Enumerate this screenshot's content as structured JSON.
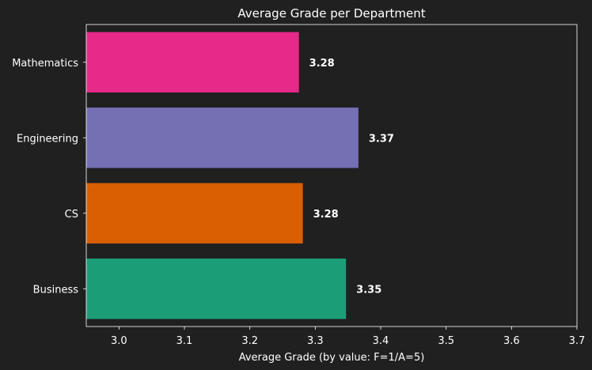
{
  "chart_data": {
    "type": "bar",
    "orientation": "horizontal",
    "title": "Average Grade per Department",
    "xlabel": "Average Grade (by value: F=1/A=5)",
    "ylabel": "",
    "categories": [
      "Mathematics",
      "Engineering",
      "CS",
      "Business"
    ],
    "values": [
      3.275,
      3.366,
      3.281,
      3.347
    ],
    "value_labels": [
      "3.28",
      "3.37",
      "3.28",
      "3.35"
    ],
    "colors": [
      "#e7298a",
      "#7570b3",
      "#d95f02",
      "#1b9e77"
    ],
    "xlim": [
      2.95,
      3.7
    ],
    "xticks": [
      "3.0",
      "3.1",
      "3.2",
      "3.3",
      "3.4",
      "3.5",
      "3.6",
      "3.7"
    ],
    "grid": false,
    "background": "#202020"
  }
}
